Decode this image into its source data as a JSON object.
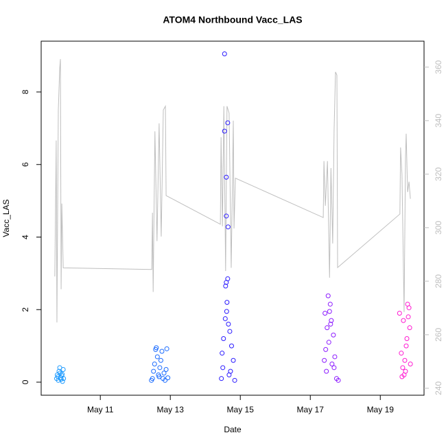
{
  "chart_data": {
    "type": "scatter",
    "title": "ATOM4 Northbound Vacc_LAS",
    "x_label": "Date",
    "y_label": "Vacc_LAS",
    "xlim": [
      9.31,
      20.25
    ],
    "xticks": [
      {
        "value": 11,
        "label": "May 11"
      },
      {
        "value": 13,
        "label": "May 13"
      },
      {
        "value": 15,
        "label": "May 15"
      },
      {
        "value": 17,
        "label": "May 17"
      },
      {
        "value": 19,
        "label": "May 19"
      }
    ],
    "ylim": [
      -0.36,
      9.4
    ],
    "yticks": [
      0,
      2,
      4,
      6,
      8
    ],
    "y2lim": [
      237.4,
      369.7
    ],
    "y2ticks": [
      240,
      260,
      280,
      300,
      320,
      340,
      360
    ],
    "series": [
      {
        "color": "#1E9BFF",
        "x": [
          9.75,
          9.77,
          9.79,
          9.8,
          9.82,
          9.84,
          9.85,
          9.87,
          9.88,
          9.9,
          9.91,
          9.92,
          9.94,
          9.95
        ],
        "values": [
          0.1,
          0.2,
          0.15,
          0.05,
          0.3,
          0.4,
          0.25,
          0.12,
          0.08,
          0.18,
          0.22,
          0.02,
          0.35,
          0.1
        ]
      },
      {
        "color": "#1A6BFF",
        "x": [
          12.46,
          12.49,
          12.52,
          12.55,
          12.58,
          12.6,
          12.63,
          12.66,
          12.68,
          12.7,
          12.73,
          12.76,
          12.79,
          12.82,
          12.85,
          12.88,
          12.9,
          12.93
        ],
        "values": [
          0.05,
          0.1,
          0.3,
          0.5,
          0.9,
          0.95,
          0.7,
          0.2,
          0.15,
          0.4,
          0.6,
          0.85,
          0.1,
          0.25,
          0.05,
          0.35,
          0.92,
          0.12
        ]
      },
      {
        "color": "#2A1AFF",
        "x": [
          14.55,
          14.55,
          14.64,
          14.6,
          14.6,
          14.65,
          14.64,
          14.6,
          14.58,
          14.62,
          14.61,
          14.57,
          14.66,
          14.7,
          14.52,
          14.75,
          14.48,
          14.8,
          14.5,
          14.68,
          14.46,
          14.84,
          14.72
        ],
        "values": [
          9.05,
          6.92,
          7.15,
          5.65,
          4.58,
          4.28,
          2.85,
          2.75,
          2.65,
          2.2,
          1.95,
          1.75,
          1.6,
          1.4,
          1.2,
          1.0,
          0.8,
          0.6,
          0.4,
          0.2,
          0.1,
          0.05,
          0.3
        ]
      },
      {
        "color": "#8C1AFF",
        "x": [
          17.51,
          17.57,
          17.42,
          17.6,
          17.48,
          17.66,
          17.53,
          17.44,
          17.7,
          17.62,
          17.46,
          17.75,
          17.8,
          17.55,
          17.4,
          17.68,
          17.58
        ],
        "values": [
          2.38,
          2.15,
          1.9,
          1.7,
          1.5,
          1.3,
          1.1,
          0.9,
          0.7,
          0.5,
          0.3,
          0.1,
          0.05,
          1.95,
          0.6,
          0.4,
          1.6
        ]
      },
      {
        "color": "#FF1AD1",
        "x": [
          19.78,
          19.82,
          19.55,
          19.8,
          19.66,
          19.84,
          19.76,
          19.74,
          19.6,
          19.7,
          19.86,
          19.64,
          19.72,
          19.68,
          19.62
        ],
        "values": [
          2.15,
          2.05,
          1.9,
          1.8,
          1.7,
          1.5,
          1.2,
          1.0,
          0.8,
          0.6,
          0.5,
          0.4,
          0.3,
          0.2,
          0.15
        ]
      },
      {
        "type": "line",
        "axis": "y2",
        "color": "#BEBEBE",
        "x": [
          9.7,
          9.74,
          9.76,
          9.8,
          9.84,
          9.86,
          9.88,
          9.9,
          9.94,
          12.47,
          12.49,
          12.51,
          12.56,
          12.62,
          12.68,
          12.74,
          12.8,
          12.86,
          12.88,
          14.43,
          14.45,
          14.49,
          14.53,
          14.58,
          14.62,
          14.68,
          14.74,
          14.8,
          14.82,
          14.86,
          17.37,
          17.39,
          17.43,
          17.49,
          17.55,
          17.59,
          17.64,
          17.68,
          17.72,
          17.76,
          17.78,
          19.56,
          19.58,
          19.62,
          19.68,
          19.72,
          19.74,
          19.78,
          19.82,
          19.86
        ],
        "values": [
          281.8,
          332.6,
          264.6,
          344,
          359.5,
          363,
          277,
          309,
          285,
          284.4,
          305.6,
          276,
          336,
          295,
          339,
          296.7,
          344,
          345.4,
          312,
          301.3,
          333.8,
          300.5,
          345.4,
          283.8,
          345.4,
          342.8,
          285,
          340,
          299.7,
          318.5,
          303.8,
          324.9,
          308.2,
          324.9,
          281.3,
          322.3,
          294.1,
          336.4,
          358.2,
          357,
          285.1,
          305.1,
          330,
          319.7,
          268.5,
          326.2,
          335.1,
          313.3,
          317.2,
          310.8
        ]
      }
    ]
  }
}
